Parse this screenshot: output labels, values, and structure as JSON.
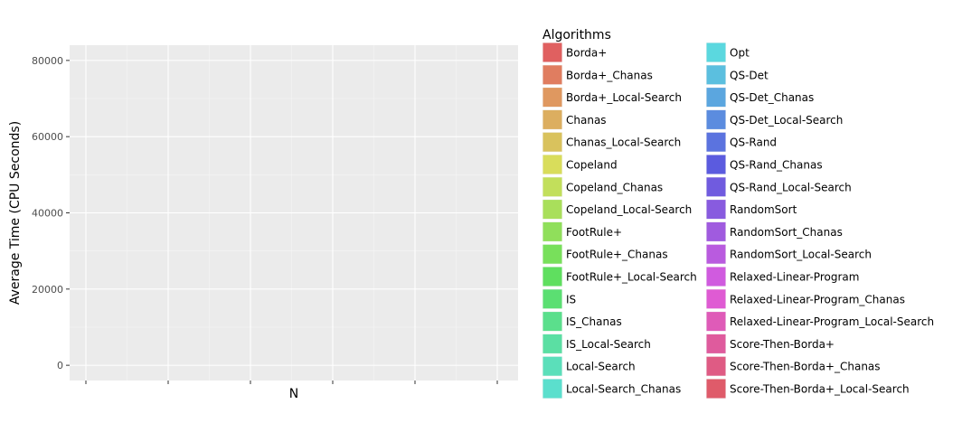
{
  "chart_data": {
    "type": "bar",
    "title": "",
    "xlabel": "N",
    "ylabel": "Average Time (CPU Seconds)",
    "ylim": [
      -4000,
      84000
    ],
    "y_ticks": [
      0,
      20000,
      40000,
      60000,
      80000
    ],
    "y_tick_labels": [
      "0",
      "20000",
      "40000",
      "60000",
      "80000"
    ],
    "x_tick_count": 6,
    "x_tick_labels": [],
    "grid": true,
    "legend_position": "right",
    "legend_title": "Algorithms",
    "series": [
      {
        "name": "Borda+",
        "color": "#e06060",
        "values": []
      },
      {
        "name": "Borda+_Chanas",
        "color": "#e07d60",
        "values": []
      },
      {
        "name": "Borda+_Local-Search",
        "color": "#df9860",
        "values": []
      },
      {
        "name": "Chanas",
        "color": "#dcae60",
        "values": []
      },
      {
        "name": "Chanas_Local-Search",
        "color": "#d9c25d",
        "values": []
      },
      {
        "name": "Copeland",
        "color": "#d9dd5b",
        "values": []
      },
      {
        "name": "Copeland_Chanas",
        "color": "#c2df5b",
        "values": []
      },
      {
        "name": "Copeland_Local-Search",
        "color": "#a9df5b",
        "values": []
      },
      {
        "name": "FootRule+",
        "color": "#90df5b",
        "values": []
      },
      {
        "name": "FootRule+_Chanas",
        "color": "#78e05b",
        "values": []
      },
      {
        "name": "FootRule+_Local-Search",
        "color": "#5fdf5f",
        "values": []
      },
      {
        "name": "IS",
        "color": "#5bdf72",
        "values": []
      },
      {
        "name": "IS_Chanas",
        "color": "#5bdf8c",
        "values": []
      },
      {
        "name": "IS_Local-Search",
        "color": "#5bdfa3",
        "values": []
      },
      {
        "name": "Local-Search",
        "color": "#5bdfba",
        "values": []
      },
      {
        "name": "Local-Search_Chanas",
        "color": "#5bdfcd",
        "values": []
      },
      {
        "name": "Opt",
        "color": "#5bd8df",
        "values": []
      },
      {
        "name": "QS-Det",
        "color": "#5bbfdf",
        "values": []
      },
      {
        "name": "QS-Det_Chanas",
        "color": "#5ba6df",
        "values": []
      },
      {
        "name": "QS-Det_Local-Search",
        "color": "#5b8cdf",
        "values": []
      },
      {
        "name": "QS-Rand",
        "color": "#5b73df",
        "values": []
      },
      {
        "name": "QS-Rand_Chanas",
        "color": "#5b5bdf",
        "values": []
      },
      {
        "name": "QS-Rand_Local-Search",
        "color": "#705bdf",
        "values": []
      },
      {
        "name": "RandomSort",
        "color": "#885bdf",
        "values": []
      },
      {
        "name": "RandomSort_Chanas",
        "color": "#a05bdf",
        "values": []
      },
      {
        "name": "RandomSort_Local-Search",
        "color": "#b95bdf",
        "values": []
      },
      {
        "name": "Relaxed-Linear-Program",
        "color": "#d05bdf",
        "values": []
      },
      {
        "name": "Relaxed-Linear-Program_Chanas",
        "color": "#df5bd3",
        "values": []
      },
      {
        "name": "Relaxed-Linear-Program_Local-Search",
        "color": "#df5bb8",
        "values": []
      },
      {
        "name": "Score-Then-Borda+",
        "color": "#df5b9d",
        "values": []
      },
      {
        "name": "Score-Then-Borda+_Chanas",
        "color": "#df5b84",
        "values": []
      },
      {
        "name": "Score-Then-Borda+_Local-Search",
        "color": "#df5b6a",
        "values": []
      }
    ]
  }
}
